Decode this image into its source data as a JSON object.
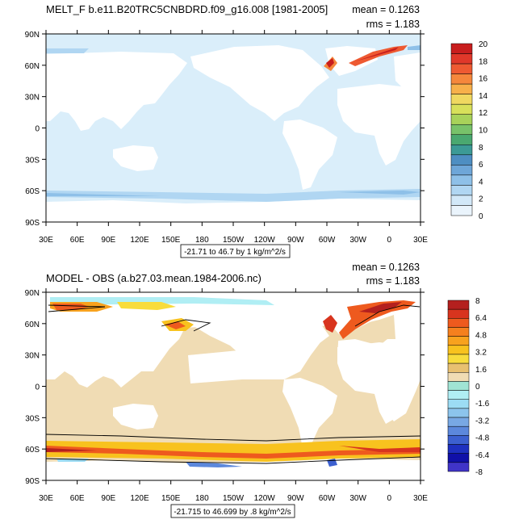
{
  "panels": [
    {
      "title": "MELT_F b.e11.B20TRC5CNBDRD.f09_g16.008 [1981-2005]",
      "mean": "mean = 0.1263",
      "rms": "rms = 1.183",
      "range_label": "-21.71 to 46.7 by 1 kg/m^2/s",
      "colorbar": {
        "labels": [
          "20",
          "18",
          "16",
          "14",
          "12",
          "10",
          "8",
          "6",
          "4",
          "2",
          "0"
        ],
        "colors": [
          "#c81e1e",
          "#e0382a",
          "#ee5a32",
          "#f5873c",
          "#f7b04a",
          "#f0d860",
          "#d8e05a",
          "#a8d25a",
          "#78c26a",
          "#4aa870",
          "#3c9a96",
          "#4e8ec2",
          "#6ea6d8",
          "#8ec0e8",
          "#b0d6f2",
          "#d2e8f8",
          "#eaf4fc"
        ]
      }
    },
    {
      "title": "MODEL - OBS (a.b27.03.mean.1984-2006.nc)",
      "mean": "mean = 0.1263",
      "rms": "rms = 1.183",
      "range_label": "-21.715 to 46.699 by .8 kg/m^2/s",
      "colorbar": {
        "labels": [
          "8",
          "6.4",
          "4.8",
          "3.2",
          "1.6",
          "0",
          "-1.6",
          "-3.2",
          "-4.8",
          "-6.4",
          "-8"
        ],
        "colors": [
          "#b4201e",
          "#d8341e",
          "#ee5a1e",
          "#f5801e",
          "#f8a21e",
          "#f8c21e",
          "#f8dc3c",
          "#e8c070",
          "#f0dcb4",
          "#a0e4d4",
          "#b0eef4",
          "#9cdcf4",
          "#8cc4ec",
          "#78a8e4",
          "#5c88dc",
          "#3c60d0",
          "#1e30c0",
          "#1010a8",
          "#4034c8"
        ]
      }
    }
  ],
  "axes": {
    "lat_labels": [
      "90N",
      "60N",
      "30N",
      "0",
      "30S",
      "60S",
      "90S"
    ],
    "lon_labels": [
      "30E",
      "60E",
      "90E",
      "120E",
      "150E",
      "180",
      "150W",
      "120W",
      "90W",
      "60W",
      "30W",
      "0",
      "30E"
    ]
  },
  "colors": {
    "ocean_background": "#daeefa",
    "bias_ocean": "#f0dcb4",
    "land": "#ffffff"
  }
}
